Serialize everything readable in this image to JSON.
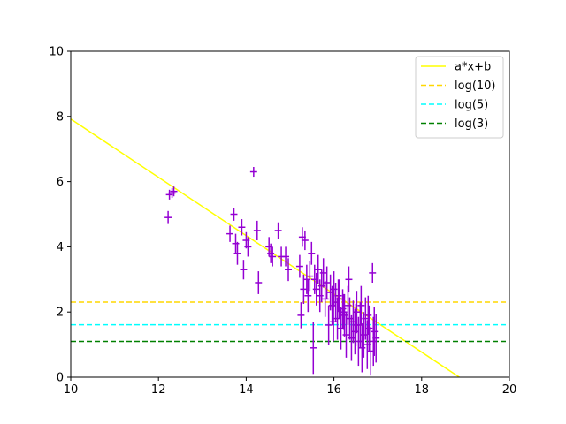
{
  "chart_data": {
    "type": "scatter",
    "title": "",
    "xlabel": "",
    "ylabel": "",
    "xlim": [
      10,
      20
    ],
    "ylim": [
      0,
      10
    ],
    "x_ticks": [
      10,
      12,
      14,
      16,
      18,
      20
    ],
    "y_ticks": [
      0,
      2,
      4,
      6,
      8,
      10
    ],
    "grid": false,
    "legend_position": "top-right",
    "series": [
      {
        "name": "a*x+b",
        "kind": "line",
        "color": "#ffff00",
        "style": "solid",
        "x": [
          10,
          18.86
        ],
        "y": [
          7.92,
          0
        ]
      },
      {
        "name": "log(10)",
        "kind": "hline",
        "color": "#ffd700",
        "style": "dashed",
        "y": 2.3026
      },
      {
        "name": "log(5)",
        "kind": "hline",
        "color": "#00ffff",
        "style": "dashed",
        "y": 1.6094
      },
      {
        "name": "log(3)",
        "kind": "hline",
        "color": "#008000",
        "style": "dashed",
        "y": 1.0986
      }
    ],
    "points": {
      "color": "#9400d3",
      "x": [
        12.22,
        12.25,
        12.31,
        12.35,
        13.63,
        13.72,
        13.76,
        13.8,
        13.9,
        13.94,
        14.0,
        14.04,
        14.17,
        14.25,
        14.28,
        14.52,
        14.56,
        14.6,
        14.73,
        14.8,
        14.9,
        14.96,
        15.22,
        15.25,
        15.28,
        15.31,
        15.34,
        15.38,
        15.41,
        15.45,
        15.49,
        15.53,
        15.56,
        15.6,
        15.64,
        15.68,
        15.72,
        15.76,
        15.8,
        15.84,
        15.88,
        15.92,
        15.96,
        16.0,
        16.04,
        16.08,
        16.12,
        16.16,
        16.2,
        16.24,
        16.28,
        16.32,
        16.36,
        16.4,
        16.44,
        16.48,
        16.52,
        16.56,
        16.6,
        16.64,
        16.68,
        16.72,
        16.76,
        16.8,
        16.84,
        16.88,
        16.92,
        16.96,
        16.34,
        16.62,
        16.22,
        16.5,
        16.78,
        16.9,
        15.99,
        16.1
      ],
      "y": [
        4.9,
        5.6,
        5.65,
        5.7,
        4.4,
        5.0,
        4.1,
        3.8,
        4.6,
        3.3,
        4.2,
        4.0,
        6.3,
        4.5,
        2.9,
        4.0,
        3.8,
        3.7,
        4.5,
        3.7,
        3.7,
        3.3,
        3.4,
        1.9,
        4.3,
        2.7,
        4.2,
        3.0,
        2.5,
        3.1,
        3.8,
        0.9,
        3.0,
        2.7,
        3.3,
        2.5,
        2.8,
        3.2,
        2.4,
        2.9,
        1.6,
        2.6,
        2.2,
        2.7,
        2.3,
        1.8,
        2.4,
        1.5,
        2.1,
        1.9,
        1.3,
        2.2,
        1.8,
        1.2,
        1.7,
        1.4,
        2.0,
        1.1,
        1.6,
        0.9,
        1.3,
        1.8,
        1.0,
        1.5,
        0.8,
        3.2,
        1.4,
        1.2,
        3.0,
        2.2,
        2.0,
        1.6,
        1.9,
        1.1,
        1.7,
        2.5
      ],
      "yerr": [
        0.2,
        0.15,
        0.15,
        0.15,
        0.25,
        0.2,
        0.3,
        0.35,
        0.25,
        0.3,
        0.25,
        0.3,
        0.15,
        0.3,
        0.35,
        0.3,
        0.3,
        0.3,
        0.25,
        0.3,
        0.3,
        0.35,
        0.35,
        0.4,
        0.3,
        0.45,
        0.3,
        0.45,
        0.5,
        0.45,
        0.35,
        0.8,
        0.45,
        0.5,
        0.45,
        0.5,
        0.5,
        0.45,
        0.55,
        0.5,
        0.6,
        0.55,
        0.6,
        0.55,
        0.6,
        0.65,
        0.6,
        0.65,
        0.6,
        0.65,
        0.7,
        0.6,
        0.65,
        0.7,
        0.65,
        0.7,
        0.65,
        0.75,
        0.7,
        0.75,
        0.7,
        0.65,
        0.75,
        0.7,
        0.75,
        0.3,
        0.75,
        0.75,
        0.4,
        0.6,
        0.55,
        0.65,
        0.6,
        0.75,
        0.6,
        0.5
      ],
      "xerr": 0.08
    }
  }
}
